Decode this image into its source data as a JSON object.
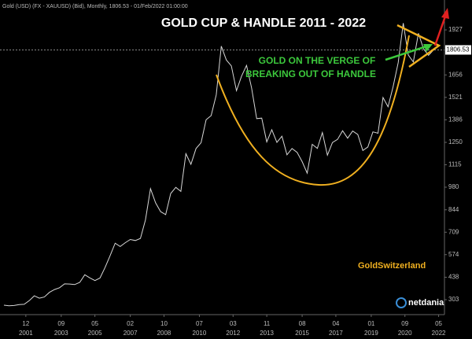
{
  "chart_data": {
    "type": "line",
    "header": "Gold (USD) (FX - XAUUSD) (Bid), Monthly, 1806.53 - 01/Feb/2022 01:00:00",
    "title": "GOLD CUP & HANDLE 2011 - 2022",
    "annotation": [
      "GOLD ON THE VERGE OF",
      "BREAKING OUT OF HANDLE"
    ],
    "watermark": "GoldSwitzerland",
    "brand": "netdania",
    "color": "#d8d8d8",
    "last_value": 1806.53,
    "x": [
      "2000-11",
      "2001-02",
      "2001-05",
      "2001-08",
      "2001-11",
      "2002-02",
      "2002-05",
      "2002-08",
      "2002-11",
      "2003-02",
      "2003-05",
      "2003-08",
      "2003-11",
      "2004-02",
      "2004-05",
      "2004-08",
      "2004-11",
      "2005-02",
      "2005-05",
      "2005-08",
      "2005-11",
      "2006-02",
      "2006-05",
      "2006-08",
      "2006-11",
      "2007-02",
      "2007-05",
      "2007-08",
      "2007-11",
      "2008-02",
      "2008-05",
      "2008-08",
      "2008-11",
      "2009-02",
      "2009-05",
      "2009-08",
      "2009-11",
      "2010-02",
      "2010-05",
      "2010-08",
      "2010-11",
      "2011-02",
      "2011-05",
      "2011-08",
      "2011-11",
      "2012-02",
      "2012-05",
      "2012-08",
      "2012-11",
      "2013-02",
      "2013-05",
      "2013-08",
      "2013-11",
      "2014-02",
      "2014-05",
      "2014-08",
      "2014-11",
      "2015-02",
      "2015-05",
      "2015-08",
      "2015-11",
      "2016-02",
      "2016-05",
      "2016-08",
      "2016-11",
      "2017-02",
      "2017-05",
      "2017-08",
      "2017-11",
      "2018-02",
      "2018-05",
      "2018-08",
      "2018-11",
      "2019-02",
      "2019-05",
      "2019-08",
      "2019-11",
      "2020-02",
      "2020-05",
      "2020-08",
      "2020-11",
      "2021-02",
      "2021-05",
      "2021-08",
      "2021-11",
      "2022-02"
    ],
    "values": [
      270,
      266,
      268,
      273,
      275,
      297,
      326,
      312,
      319,
      347,
      364,
      375,
      398,
      397,
      394,
      407,
      453,
      434,
      418,
      433,
      496,
      567,
      643,
      623,
      646,
      665,
      659,
      672,
      783,
      971,
      886,
      833,
      815,
      942,
      979,
      955,
      1182,
      1118,
      1213,
      1248,
      1386,
      1411,
      1536,
      1829,
      1746,
      1710,
      1561,
      1648,
      1713,
      1578,
      1393,
      1396,
      1253,
      1326,
      1250,
      1287,
      1175,
      1213,
      1190,
      1134,
      1065,
      1238,
      1214,
      1309,
      1173,
      1249,
      1268,
      1320,
      1275,
      1318,
      1298,
      1201,
      1222,
      1313,
      1305,
      1520,
      1464,
      1585,
      1730,
      1968,
      1776,
      1734,
      1906,
      1814,
      1774,
      1806.53
    ],
    "xlim": [
      "2000-11",
      "2022-08"
    ],
    "xticks": [
      {
        "value": "2001-12",
        "label": [
          "12",
          "2001"
        ]
      },
      {
        "value": "2003-09",
        "label": [
          "09",
          "2003"
        ]
      },
      {
        "value": "2005-05",
        "label": [
          "05",
          "2005"
        ]
      },
      {
        "value": "2007-02",
        "label": [
          "02",
          "2007"
        ]
      },
      {
        "value": "2008-10",
        "label": [
          "10",
          "2008"
        ]
      },
      {
        "value": "2010-07",
        "label": [
          "07",
          "2010"
        ]
      },
      {
        "value": "2012-03",
        "label": [
          "03",
          "2012"
        ]
      },
      {
        "value": "2013-11",
        "label": [
          "11",
          "2013"
        ]
      },
      {
        "value": "2015-08",
        "label": [
          "08",
          "2015"
        ]
      },
      {
        "value": "2017-04",
        "label": [
          "04",
          "2017"
        ]
      },
      {
        "value": "2019-01",
        "label": [
          "01",
          "2019"
        ]
      },
      {
        "value": "2020-09",
        "label": [
          "09",
          "2020"
        ]
      },
      {
        "value": "2022-05",
        "label": [
          "05",
          "2022"
        ]
      }
    ],
    "ylim": [
      213,
      2107
    ],
    "yticks": [
      303,
      438,
      574,
      709,
      844,
      980,
      1115,
      1250,
      1386,
      1521,
      1656,
      1927
    ],
    "grid": false
  }
}
